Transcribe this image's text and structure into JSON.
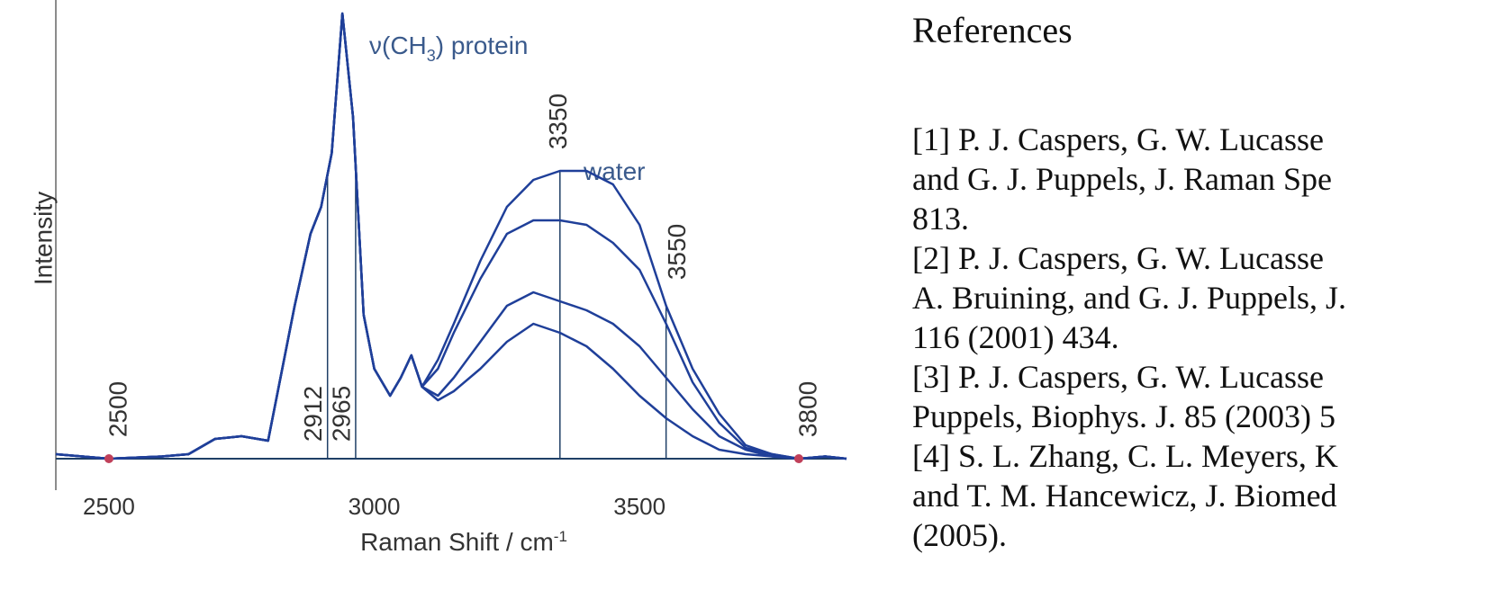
{
  "chart_data": {
    "type": "line",
    "annotations": {
      "protein": {
        "main": "ν(CH",
        "sub": "3",
        "tail": ") protein"
      },
      "water": "water"
    },
    "x_label": {
      "main": "Raman Shift / cm",
      "sup": "-1"
    },
    "y_label": "Intensity",
    "x": [
      2400,
      2500,
      2600,
      2650,
      2700,
      2750,
      2800,
      2850,
      2880,
      2900,
      2920,
      2940,
      2960,
      2980,
      3000,
      3030,
      3050,
      3070,
      3090,
      3120,
      3150,
      3200,
      3250,
      3300,
      3350,
      3400,
      3450,
      3500,
      3550,
      3600,
      3650,
      3700,
      3750,
      3800,
      3850,
      3890
    ],
    "series": [
      {
        "color": "#1f3f99",
        "values": [
          1,
          0,
          0.5,
          1,
          4.4,
          5,
          4,
          34,
          50,
          56,
          68,
          99,
          76,
          32,
          20,
          14,
          18,
          23,
          16,
          22,
          30,
          44,
          56,
          62,
          64,
          64,
          61,
          52,
          34,
          20,
          10,
          3,
          1,
          0,
          0.5,
          0
        ]
      },
      {
        "color": "#1f3f99",
        "values": [
          1,
          0,
          0.5,
          1,
          4.4,
          5,
          4,
          34,
          50,
          56,
          68,
          99,
          76,
          32,
          20,
          14,
          18,
          23,
          16,
          20,
          28,
          40,
          50,
          53,
          53,
          52,
          48,
          42,
          30,
          17,
          8,
          2.4,
          1,
          0,
          0.5,
          0
        ]
      },
      {
        "color": "#1f3f99",
        "values": [
          1,
          0,
          0.5,
          1,
          4.4,
          5,
          4,
          34,
          50,
          56,
          68,
          99,
          76,
          32,
          20,
          14,
          18,
          23,
          16,
          14,
          18,
          26,
          34,
          37,
          35,
          33,
          30,
          25,
          18,
          11,
          5,
          2,
          0.5,
          0,
          0.5,
          0
        ]
      },
      {
        "color": "#1f3f99",
        "values": [
          1,
          0,
          0.5,
          1,
          4.4,
          5,
          4,
          34,
          50,
          56,
          68,
          99,
          76,
          32,
          20,
          14,
          18,
          23,
          16,
          13,
          15,
          20,
          26,
          30,
          28,
          25,
          20,
          14,
          9,
          5,
          2,
          1,
          0.5,
          0,
          0.5,
          0
        ]
      }
    ],
    "xlim": [
      2400,
      3890
    ],
    "ylim": [
      0,
      100
    ],
    "xticks": [
      2500,
      3000,
      3500
    ],
    "markers": {
      "lines": [
        2912,
        2965,
        3350,
        3550
      ],
      "points": [
        2500,
        3800
      ],
      "point_color": "#c0405a"
    }
  },
  "references": {
    "title": "References",
    "lines": [
      "[1]  P. J. Caspers, G. W. Lucasse",
      "and G. J. Puppels, J. Raman Spe",
      "813.",
      "[2]  P. J. Caspers, G. W. Lucasse",
      "A. Bruining, and G. J. Puppels, J.",
      "116 (2001) 434.",
      "[3]  P. J. Caspers, G. W. Lucasse",
      "Puppels, Biophys. J. 85 (2003) 5",
      "[4]  S. L. Zhang, C. L. Meyers, K",
      "and T. M. Hancewicz, J. Biomed",
      "(2005)."
    ]
  }
}
